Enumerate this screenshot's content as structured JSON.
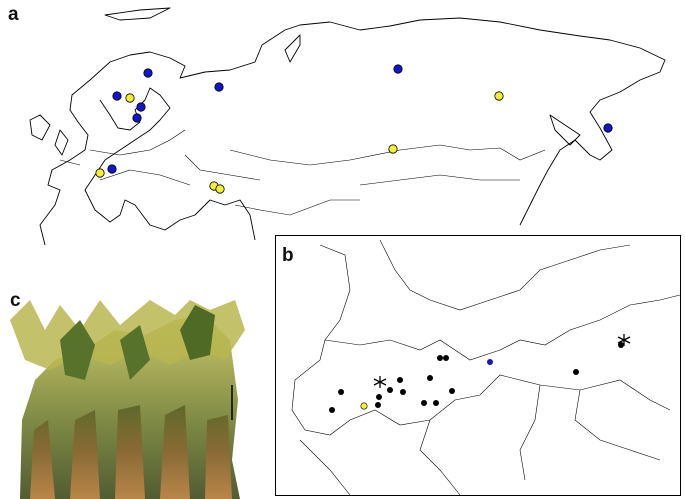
{
  "panel_labels": [
    "a",
    "b",
    "c"
  ]
}
